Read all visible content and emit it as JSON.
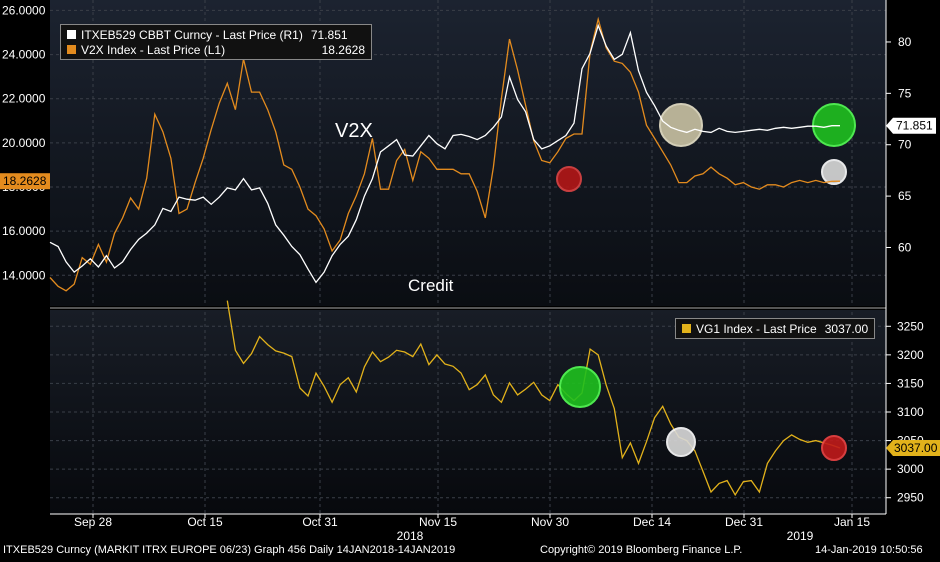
{
  "chart_data": [
    {
      "type": "line",
      "panel": "upper",
      "title": "",
      "left_axis": {
        "ticks": [
          "14.0000",
          "16.0000",
          "18.0000",
          "20.0000",
          "22.0000",
          "24.0000",
          "26.0000"
        ],
        "ylim": [
          12.7,
          26.2
        ]
      },
      "right_axis": {
        "ticks": [
          "60",
          "65",
          "70",
          "75",
          "80"
        ],
        "ylim": [
          54.5,
          83.5
        ]
      },
      "legend": [
        {
          "name": "ITXEB529 CBBT Curncy - Last Price (R1)",
          "value": "71.851",
          "color": "#ffffff"
        },
        {
          "name": "V2X Index - Last Price (L1)",
          "value": "18.2628",
          "color": "#e38b1e"
        }
      ],
      "annotations": {
        "v2x_label": "V2X",
        "credit_label": "Credit"
      },
      "last_value_tags": {
        "left": "18.2628",
        "right": "71.851"
      },
      "series": [
        {
          "name": "V2X Index - Last Price (L1)",
          "axis": "left",
          "color": "#e38b1e",
          "x": [
            0,
            1,
            2,
            3,
            4,
            5,
            6,
            7,
            8,
            9,
            10,
            11,
            12,
            13,
            14,
            15,
            16,
            17,
            18,
            19,
            20,
            21,
            22,
            23,
            24,
            25,
            26,
            27,
            28,
            29,
            30,
            31,
            32,
            33,
            34,
            35,
            36,
            37,
            38,
            39,
            40,
            41,
            42,
            43,
            44,
            45,
            46,
            47,
            48,
            49,
            50,
            51,
            52,
            53,
            54,
            55,
            56,
            57,
            58,
            59,
            60,
            61,
            62,
            63,
            64,
            65,
            66,
            67,
            68,
            69,
            70,
            71,
            72,
            73,
            74,
            75,
            76,
            77,
            78,
            79,
            80,
            81,
            82,
            83,
            84,
            85,
            86,
            87,
            88,
            89,
            90,
            91,
            92,
            93,
            94,
            95,
            96,
            97,
            98
          ],
          "values": [
            13.9,
            13.5,
            13.3,
            13.6,
            14.8,
            14.5,
            15.4,
            14.6,
            15.9,
            16.6,
            17.5,
            17.0,
            18.4,
            21.3,
            20.5,
            19.3,
            16.8,
            17.0,
            18.2,
            19.3,
            20.6,
            21.8,
            22.7,
            21.5,
            23.8,
            22.3,
            22.3,
            21.5,
            20.5,
            19.0,
            18.8,
            18.0,
            17.0,
            16.7,
            16.1,
            15.1,
            15.6,
            16.8,
            17.6,
            18.6,
            20.2,
            17.9,
            17.9,
            19.2,
            19.7,
            18.3,
            19.6,
            19.3,
            18.8,
            18.8,
            18.8,
            18.6,
            18.6,
            17.8,
            16.6,
            18.9,
            22.0,
            24.7,
            23.3,
            21.7,
            20.1,
            19.2,
            19.1,
            19.6,
            20.2,
            20.4,
            20.4,
            24.1,
            25.6,
            24.3,
            23.7,
            23.6,
            23.2,
            22.3,
            20.8,
            20.2,
            19.6,
            19.0,
            18.2,
            18.2,
            18.5,
            18.6,
            18.9,
            18.6,
            18.4,
            18.1,
            18.2,
            18.0,
            17.9,
            18.1,
            18.1,
            18.0,
            18.2,
            18.3,
            18.2,
            18.3,
            18.2,
            18.26,
            18.2628
          ]
        },
        {
          "name": "ITXEB529 CBBT Curncy - Last Price (R1)",
          "axis": "right",
          "color": "#ffffff",
          "x": [
            0,
            1,
            2,
            3,
            4,
            5,
            6,
            7,
            8,
            9,
            10,
            11,
            12,
            13,
            14,
            15,
            16,
            17,
            18,
            19,
            20,
            21,
            22,
            23,
            24,
            25,
            26,
            27,
            28,
            29,
            30,
            31,
            32,
            33,
            34,
            35,
            36,
            37,
            38,
            39,
            40,
            41,
            42,
            43,
            44,
            45,
            46,
            47,
            48,
            49,
            50,
            51,
            52,
            53,
            54,
            55,
            56,
            57,
            58,
            59,
            60,
            61,
            62,
            63,
            64,
            65,
            66,
            67,
            68,
            69,
            70,
            71,
            72,
            73,
            74,
            75,
            76,
            77,
            78,
            79,
            80,
            81,
            82,
            83,
            84,
            85,
            86,
            87,
            88,
            89,
            90,
            91,
            92,
            93,
            94,
            95,
            96,
            97,
            98
          ],
          "values": [
            60.5,
            60.1,
            58.6,
            57.6,
            58.2,
            58.9,
            58.1,
            59.2,
            58.0,
            58.6,
            59.8,
            60.8,
            61.4,
            62.2,
            63.8,
            63.5,
            64.9,
            64.7,
            64.6,
            64.9,
            64.2,
            64.9,
            65.8,
            65.6,
            66.7,
            65.6,
            65.8,
            64.3,
            62.2,
            61.2,
            60.1,
            59.3,
            57.9,
            56.6,
            57.6,
            59.2,
            60.3,
            61.1,
            62.7,
            65.0,
            66.7,
            69.3,
            69.9,
            70.5,
            69.0,
            68.9,
            69.9,
            70.9,
            70.1,
            69.6,
            70.9,
            71.0,
            70.8,
            70.5,
            70.9,
            71.7,
            72.7,
            76.6,
            74.4,
            73.2,
            70.5,
            69.6,
            69.9,
            70.4,
            70.9,
            72.1,
            77.4,
            78.9,
            81.6,
            79.6,
            78.3,
            78.8,
            80.9,
            77.2,
            75.1,
            73.8,
            72.3,
            71.7,
            71.4,
            71.2,
            71.5,
            71.3,
            71.2,
            71.6,
            71.3,
            71.2,
            71.3,
            71.4,
            71.5,
            71.4,
            71.6,
            71.7,
            71.6,
            71.7,
            71.8,
            71.8,
            71.7,
            71.85,
            71.851
          ]
        }
      ]
    },
    {
      "type": "line",
      "panel": "lower",
      "title": "",
      "right_axis": {
        "ticks": [
          "2950",
          "3000",
          "3050",
          "3100",
          "3150",
          "3200",
          "3250"
        ],
        "ylim": [
          2925,
          3275
        ]
      },
      "legend": [
        {
          "name": "VG1 Index - Last Price",
          "value": "3037.00",
          "color": "#e2b21b"
        }
      ],
      "last_value_tags": {
        "right": "3037.00"
      },
      "x_ticks": [
        "Sep 28",
        "Oct 15",
        "Oct 31",
        "Nov 15",
        "Nov 30",
        "Dec 14",
        "Dec 31",
        "Jan 15"
      ],
      "year_labels": [
        "2018",
        "2019"
      ],
      "series": [
        {
          "name": "VG1 Index - Last Price",
          "axis": "right",
          "color": "#e2b21b",
          "x": [
            22,
            23,
            24,
            25,
            26,
            27,
            28,
            29,
            30,
            31,
            32,
            33,
            34,
            35,
            36,
            37,
            38,
            39,
            40,
            41,
            42,
            43,
            44,
            45,
            46,
            47,
            48,
            49,
            50,
            51,
            52,
            53,
            54,
            55,
            56,
            57,
            58,
            59,
            60,
            61,
            62,
            63,
            64,
            65,
            66,
            67,
            68,
            69,
            70,
            71,
            72,
            73,
            74,
            75,
            76,
            77,
            78,
            79,
            80,
            81,
            82,
            83,
            84,
            85,
            86,
            87,
            88,
            89,
            90,
            91,
            92,
            93,
            94,
            95,
            96,
            97,
            98
          ],
          "values": [
            3295,
            3208,
            3185,
            3202,
            3232,
            3218,
            3207,
            3203,
            3197,
            3142,
            3128,
            3168,
            3145,
            3117,
            3148,
            3160,
            3135,
            3179,
            3205,
            3188,
            3196,
            3208,
            3205,
            3197,
            3219,
            3183,
            3200,
            3184,
            3180,
            3168,
            3139,
            3148,
            3165,
            3130,
            3117,
            3151,
            3130,
            3140,
            3152,
            3130,
            3120,
            3148,
            3132,
            3120,
            3133,
            3210,
            3200,
            3147,
            3106,
            3020,
            3046,
            3010,
            3048,
            3090,
            3110,
            3079,
            3056,
            3050,
            3032,
            2996,
            2960,
            2975,
            2980,
            2955,
            2978,
            2980,
            2960,
            3010,
            3032,
            3050,
            3060,
            3052,
            3047,
            3050,
            3046,
            3042,
            3037
          ]
        }
      ]
    }
  ],
  "footer": {
    "left": "ITXEB529 Curncy (MARKIT ITRX EUROPE 06/23) Graph 456  Daily 14JAN2018-14JAN2019",
    "center": "Copyright© 2019 Bloomberg Finance L.P.",
    "right": "14-Jan-2019 10:50:56"
  }
}
